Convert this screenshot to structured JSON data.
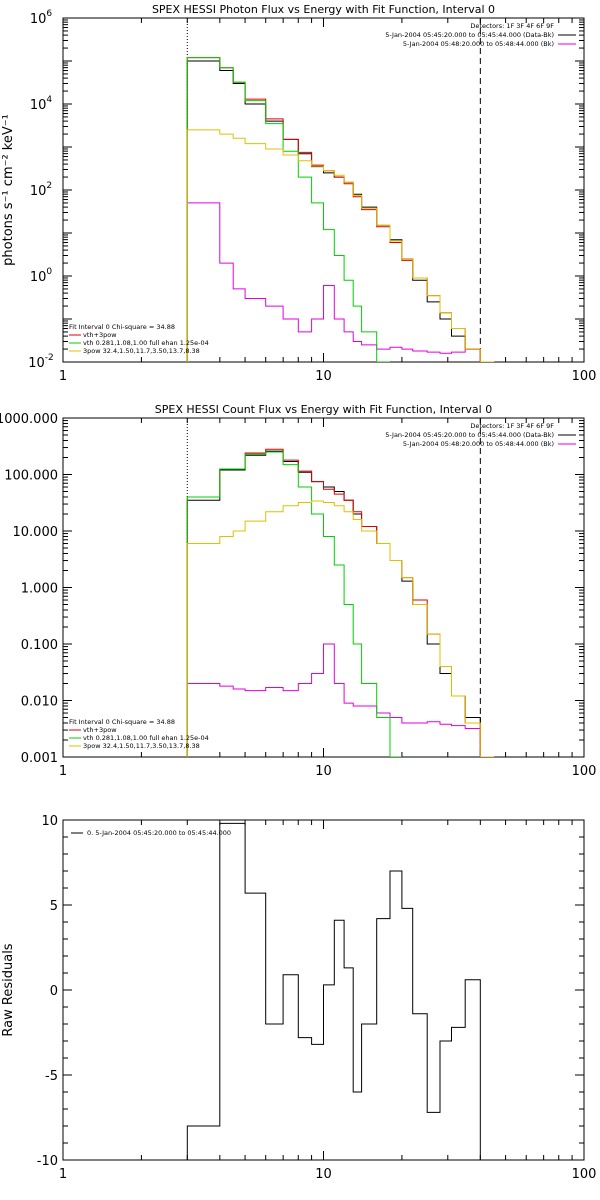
{
  "chart_data": [
    {
      "type": "line",
      "title": "SPEX HESSI Photon Flux vs Energy with Fit Function, Interval 0",
      "xlabel": "",
      "ylabel": "photons s⁻¹ cm⁻² keV⁻¹",
      "x_scale": "log",
      "y_scale": "log",
      "xlim": [
        1,
        100
      ],
      "ylim": [
        0.01,
        1000000
      ],
      "x_ticks": [
        {
          "v": 1,
          "label": "1"
        },
        {
          "v": 10,
          "label": "10"
        },
        {
          "v": 100,
          "label": "100"
        }
      ],
      "y_ticks": [
        {
          "v": 0.01,
          "base": "10",
          "exp": "-2"
        },
        {
          "v": 1,
          "base": "10",
          "exp": "0"
        },
        {
          "v": 100,
          "base": "10",
          "exp": "2"
        },
        {
          "v": 10000,
          "base": "10",
          "exp": "4"
        },
        {
          "v": 1000000,
          "base": "10",
          "exp": "6"
        }
      ],
      "top_annotations": [
        "Detectors: 1F 3F 4F 6F 9F",
        "5-Jan-2004 05:45:20.000 to 05:45:44.000 (Data-Bk)",
        "5-Jan-2004 05:48:20.000 to 05:48:44.000 (Bk)"
      ],
      "fit_legend_title": "Fit Interval 0   Chi-square = 34.88",
      "vlines": [
        {
          "x": 3.0,
          "style": "dotted"
        },
        {
          "x": 40.0,
          "style": "dashed"
        }
      ],
      "edges": [
        3.0,
        3.5,
        4.0,
        4.5,
        5.0,
        6.0,
        7.0,
        8.0,
        9.0,
        10.0,
        11.0,
        12.0,
        13.0,
        14.0,
        16.0,
        18.0,
        20.0,
        22.0,
        25.0,
        28.0,
        31.0,
        35.0,
        40.0,
        45.0
      ],
      "series": [
        {
          "role": "data",
          "color": "#000000",
          "values": [
            100000,
            100000,
            60000,
            30000,
            10000,
            4000,
            1500,
            700,
            350,
            250,
            200,
            150,
            80,
            40,
            15,
            7,
            2.5,
            0.8,
            0.25,
            0.1,
            0.04,
            0.02,
            null
          ]
        },
        {
          "role": "background",
          "color": "#e000e0",
          "values": [
            50,
            50,
            2,
            0.5,
            0.3,
            0.2,
            0.1,
            0.05,
            0.1,
            0.6,
            0.1,
            0.05,
            0.03,
            0.025,
            0.02,
            0.022,
            0.02,
            0.018,
            0.017,
            0.016,
            0.017,
            0.02,
            null
          ]
        },
        {
          "name": "vth+3pow",
          "role": "fit_total",
          "color": "#e00000",
          "legend_color": "#e00000",
          "values": [
            120000,
            120000,
            70000,
            32000,
            13000,
            4500,
            1500,
            750,
            380,
            280,
            200,
            140,
            70,
            35,
            14,
            6,
            2.3,
            0.9,
            0.35,
            0.14,
            0.06,
            0.02,
            0.01
          ]
        },
        {
          "name": "vth 0.281,1.08,1.00  full ehan 1.25e-04",
          "role": "fit_thermal",
          "color": "#00d000",
          "legend_color": "#00d000",
          "values": [
            120000,
            120000,
            70000,
            32000,
            12000,
            3500,
            800,
            200,
            50,
            12,
            3,
            0.8,
            0.2,
            0.05,
            0.01,
            null,
            null,
            null,
            null,
            null,
            null,
            null,
            null
          ]
        },
        {
          "name": "3pow 32.4,1.50,11.7,3.50,13.7,8.38",
          "role": "fit_power",
          "color": "#e0c000",
          "legend_color": "#e0c000",
          "values": [
            2500,
            2500,
            2000,
            1600,
            1200,
            900,
            650,
            480,
            360,
            280,
            220,
            150,
            75,
            38,
            15,
            6.5,
            2.5,
            0.9,
            0.35,
            0.14,
            0.06,
            0.02,
            0.01
          ]
        }
      ]
    },
    {
      "type": "line",
      "title": "SPEX HESSI Count Flux vs Energy with Fit Function, Interval 0",
      "xlabel": "",
      "ylabel": "",
      "x_scale": "log",
      "y_scale": "log",
      "xlim": [
        1,
        100
      ],
      "ylim": [
        0.001,
        1000
      ],
      "x_ticks": [
        {
          "v": 1,
          "label": "1"
        },
        {
          "v": 10,
          "label": "10"
        },
        {
          "v": 100,
          "label": "100"
        }
      ],
      "y_ticks": [
        {
          "v": 0.001,
          "label": "0.001"
        },
        {
          "v": 0.01,
          "label": "0.010"
        },
        {
          "v": 0.1,
          "label": "0.100"
        },
        {
          "v": 1,
          "label": "1.000"
        },
        {
          "v": 10,
          "label": "10.000"
        },
        {
          "v": 100,
          "label": "100.000"
        },
        {
          "v": 1000,
          "label": "1000.000"
        }
      ],
      "top_annotations": [
        "Detectors: 1F 3F 4F 6F 9F",
        "5-Jan-2004 05:45:20.000 to 05:45:44.000 (Data-Bk)",
        "5-Jan-2004 05:48:20.000 to 05:48:44.000 (Bk)"
      ],
      "fit_legend_title": "Fit Interval 0   Chi-square = 34.88",
      "vlines": [
        {
          "x": 3.0,
          "style": "dotted"
        },
        {
          "x": 40.0,
          "style": "dashed"
        }
      ],
      "edges": [
        3.0,
        3.5,
        4.0,
        4.5,
        5.0,
        6.0,
        7.0,
        8.0,
        9.0,
        10.0,
        11.0,
        12.0,
        13.0,
        14.0,
        16.0,
        18.0,
        20.0,
        22.0,
        25.0,
        28.0,
        31.0,
        35.0,
        40.0,
        45.0
      ],
      "series": [
        {
          "role": "data",
          "color": "#000000",
          "values": [
            35,
            35,
            120,
            120,
            220,
            260,
            170,
            110,
            75,
            60,
            50,
            35,
            20,
            12,
            6,
            3,
            1.3,
            0.5,
            0.1,
            0.03,
            0.012,
            0.005,
            null
          ]
        },
        {
          "role": "background",
          "color": "#e000e0",
          "values": [
            0.02,
            0.02,
            0.018,
            0.016,
            0.015,
            0.017,
            0.015,
            0.02,
            0.03,
            0.1,
            0.02,
            0.009,
            0.008,
            0.008,
            0.006,
            0.005,
            0.004,
            0.004,
            0.0042,
            0.0038,
            0.0036,
            0.0032,
            null
          ]
        },
        {
          "name": "vth+3pow",
          "role": "fit_total",
          "color": "#e00000",
          "legend_color": "#e00000",
          "values": [
            40,
            40,
            125,
            125,
            240,
            280,
            180,
            115,
            75,
            55,
            45,
            35,
            22,
            12,
            6,
            3,
            1.5,
            0.6,
            0.15,
            0.04,
            0.012,
            0.004,
            0.001
          ]
        },
        {
          "name": "vth 0.281,1.08,1.00  full ehan 1.25e-04",
          "role": "fit_thermal",
          "color": "#00d000",
          "legend_color": "#00d000",
          "values": [
            40,
            40,
            125,
            125,
            230,
            250,
            150,
            60,
            20,
            8,
            2.5,
            0.5,
            0.1,
            0.02,
            0.005,
            0.001,
            null,
            null,
            null,
            null,
            null,
            null,
            null
          ]
        },
        {
          "name": "3pow 32.4,1.50,11.7,3.50,13.7,8.38",
          "role": "fit_power",
          "color": "#e0c000",
          "legend_color": "#e0c000",
          "values": [
            6,
            6,
            8,
            10,
            15,
            22,
            28,
            32,
            34,
            32,
            28,
            22,
            16,
            10,
            6,
            3,
            1.5,
            0.5,
            0.15,
            0.04,
            0.012,
            0.004,
            0.001
          ]
        }
      ]
    },
    {
      "type": "line",
      "title": "",
      "xlabel": "",
      "ylabel": "Raw Residuals",
      "x_scale": "log",
      "y_scale": "linear",
      "xlim": [
        1,
        100
      ],
      "ylim": [
        -10,
        10
      ],
      "x_ticks": [
        {
          "v": 1,
          "label": "1"
        },
        {
          "v": 10,
          "label": "10"
        },
        {
          "v": 100,
          "label": "100"
        }
      ],
      "y_ticks": [
        {
          "v": -10,
          "label": "-10"
        },
        {
          "v": -5,
          "label": "-5"
        },
        {
          "v": 0,
          "label": "0"
        },
        {
          "v": 5,
          "label": "5"
        },
        {
          "v": 10,
          "label": "10"
        }
      ],
      "legend": "0. 5-Jan-2004 05:45:20.000 to 05:45:44.000",
      "edges": [
        3.0,
        3.5,
        4.0,
        4.5,
        5.0,
        6.0,
        7.0,
        8.0,
        9.0,
        10.0,
        11.0,
        12.0,
        13.0,
        14.0,
        16.0,
        18.0,
        20.0,
        22.0,
        25.0,
        28.0,
        31.0,
        35.0,
        40.0
      ],
      "series": [
        {
          "role": "residual",
          "color": "#000000",
          "values": [
            -8,
            -8,
            9.8,
            9.8,
            5.7,
            -2,
            0.9,
            -2.8,
            -3.2,
            0.3,
            4.1,
            1.3,
            -6,
            -2,
            4.2,
            7,
            4.8,
            -1.4,
            -7.2,
            -3,
            -2.2,
            0.6
          ]
        }
      ]
    }
  ]
}
